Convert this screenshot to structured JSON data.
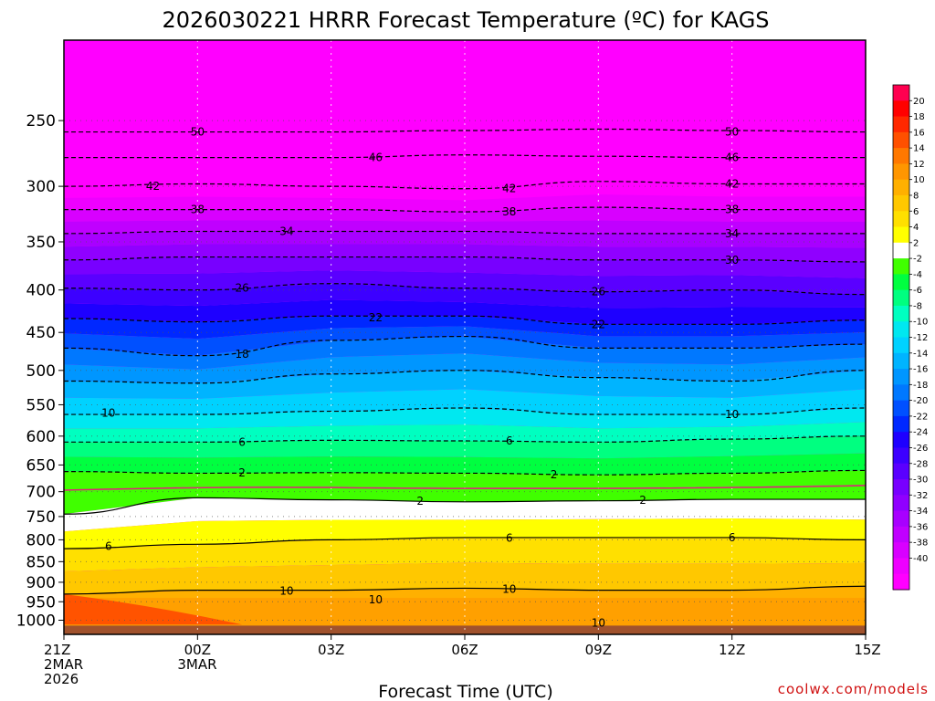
{
  "chart_data": {
    "type": "heatmap",
    "title": "2026030221 HRRR Forecast Temperature (ºC) for KAGS",
    "xlabel": "Forecast Time (UTC)",
    "ylabel": "",
    "credit": "coolwx.com/models",
    "x_ticks": [
      {
        "hour": 0,
        "lines": [
          "21Z",
          "2MAR",
          "2026"
        ]
      },
      {
        "hour": 3,
        "lines": [
          "00Z",
          "3MAR"
        ]
      },
      {
        "hour": 6,
        "lines": [
          "03Z"
        ]
      },
      {
        "hour": 9,
        "lines": [
          "06Z"
        ]
      },
      {
        "hour": 12,
        "lines": [
          "09Z"
        ]
      },
      {
        "hour": 15,
        "lines": [
          "12Z"
        ]
      },
      {
        "hour": 18,
        "lines": [
          "15Z"
        ]
      }
    ],
    "xlim": [
      0,
      18
    ],
    "y_ticks": [
      250,
      300,
      350,
      400,
      450,
      500,
      550,
      600,
      650,
      700,
      750,
      800,
      850,
      900,
      950,
      1000
    ],
    "y_scale": "log-pressure",
    "ylim": [
      200,
      1040
    ],
    "ground_level": 1015,
    "colorbar_levels": [
      -40,
      -38,
      -36,
      -34,
      -32,
      -30,
      -28,
      -26,
      -24,
      -22,
      -20,
      -18,
      -16,
      -14,
      -12,
      -10,
      -8,
      -6,
      -4,
      -2,
      2,
      4,
      6,
      8,
      10,
      12,
      14,
      16,
      18,
      20
    ],
    "colorbar_colors": [
      "#ff00ff",
      "#ee00ff",
      "#d800ff",
      "#c000ff",
      "#a800ff",
      "#9000ff",
      "#7800ff",
      "#5a00ff",
      "#3c00ff",
      "#1e00ff",
      "#0028ff",
      "#0050ff",
      "#0078ff",
      "#0096ff",
      "#00b4ff",
      "#00d2ff",
      "#00e8f0",
      "#00ffc0",
      "#00ff80",
      "#00ff40",
      "#40ff00",
      "#ffffff",
      "#ffff00",
      "#ffe000",
      "#ffc800",
      "#ffb000",
      "#ff9600",
      "#ff7800",
      "#ff5000",
      "#ff2800",
      "#ff0000",
      "#ff0050"
    ],
    "isotherm_levels_per_hour": {
      "hours": [
        0,
        3,
        6,
        9,
        12,
        15,
        18
      ],
      "description": "pressure (hPa) of selected isotherms at each forecast hour",
      "isotherms": [
        {
          "temp": -50,
          "p": [
            258,
            258,
            258,
            257,
            256,
            257,
            258
          ]
        },
        {
          "temp": -46,
          "p": [
            277,
            277,
            277,
            275,
            276,
            277,
            277
          ]
        },
        {
          "temp": -42,
          "p": [
            300,
            298,
            300,
            302,
            296,
            298,
            298
          ]
        },
        {
          "temp": -38,
          "p": [
            320,
            320,
            320,
            322,
            318,
            320,
            320
          ]
        },
        {
          "temp": -34,
          "p": [
            342,
            340,
            340,
            340,
            342,
            342,
            342
          ]
        },
        {
          "temp": -30,
          "p": [
            368,
            365,
            365,
            365,
            368,
            368,
            370
          ]
        },
        {
          "temp": -26,
          "p": [
            398,
            400,
            393,
            398,
            402,
            400,
            405
          ]
        },
        {
          "temp": -22,
          "p": [
            433,
            437,
            430,
            430,
            440,
            440,
            435
          ]
        },
        {
          "temp": -18,
          "p": [
            470,
            480,
            460,
            455,
            470,
            470,
            465
          ]
        },
        {
          "temp": -14,
          "p": [
            515,
            518,
            505,
            500,
            510,
            515,
            500
          ]
        },
        {
          "temp": -10,
          "p": [
            565,
            565,
            560,
            555,
            565,
            565,
            555
          ]
        },
        {
          "temp": -6,
          "p": [
            610,
            610,
            607,
            608,
            610,
            605,
            600
          ]
        },
        {
          "temp": -2,
          "p": [
            662,
            665,
            664,
            665,
            668,
            665,
            660
          ]
        },
        {
          "temp": 2,
          "p": [
            745,
            712,
            716,
            720,
            718,
            715,
            715
          ]
        },
        {
          "temp": 6,
          "p": [
            820,
            810,
            800,
            795,
            795,
            795,
            800
          ]
        },
        {
          "temp": 10,
          "p": [
            930,
            920,
            920,
            915,
            920,
            920,
            910
          ]
        }
      ]
    },
    "contour_labels": [
      {
        "text": "50",
        "hour": 3,
        "p": 258
      },
      {
        "text": "50",
        "hour": 15,
        "p": 258
      },
      {
        "text": "46",
        "hour": 7,
        "p": 277
      },
      {
        "text": "46",
        "hour": 15,
        "p": 277
      },
      {
        "text": "42",
        "hour": 2,
        "p": 300
      },
      {
        "text": "42",
        "hour": 10,
        "p": 302
      },
      {
        "text": "42",
        "hour": 15,
        "p": 298
      },
      {
        "text": "38",
        "hour": 3,
        "p": 320
      },
      {
        "text": "38",
        "hour": 10,
        "p": 322
      },
      {
        "text": "38",
        "hour": 15,
        "p": 320
      },
      {
        "text": "34",
        "hour": 5,
        "p": 340
      },
      {
        "text": "34",
        "hour": 15,
        "p": 342
      },
      {
        "text": "30",
        "hour": 15,
        "p": 368
      },
      {
        "text": "26",
        "hour": 4,
        "p": 398
      },
      {
        "text": "26",
        "hour": 12,
        "p": 402
      },
      {
        "text": "22",
        "hour": 7,
        "p": 432
      },
      {
        "text": "22",
        "hour": 12,
        "p": 440
      },
      {
        "text": "18",
        "hour": 4,
        "p": 478
      },
      {
        "text": "10",
        "hour": 1,
        "p": 563
      },
      {
        "text": "10",
        "hour": 15,
        "p": 565
      },
      {
        "text": "6",
        "hour": 4,
        "p": 610
      },
      {
        "text": "6",
        "hour": 10,
        "p": 608
      },
      {
        "text": "2",
        "hour": 4,
        "p": 664
      },
      {
        "text": "2",
        "hour": 11,
        "p": 668
      },
      {
        "text": "2",
        "hour": 8,
        "p": 719
      },
      {
        "text": "2",
        "hour": 13,
        "p": 717
      },
      {
        "text": "6",
        "hour": 1,
        "p": 815
      },
      {
        "text": "6",
        "hour": 10,
        "p": 796
      },
      {
        "text": "6",
        "hour": 15,
        "p": 795
      },
      {
        "text": "10",
        "hour": 5,
        "p": 922
      },
      {
        "text": "10",
        "hour": 7,
        "p": 945
      },
      {
        "text": "10",
        "hour": 10,
        "p": 918
      },
      {
        "text": "10",
        "hour": 12,
        "p": 1008
      }
    ],
    "grid": true,
    "legend": "colorbar right"
  }
}
